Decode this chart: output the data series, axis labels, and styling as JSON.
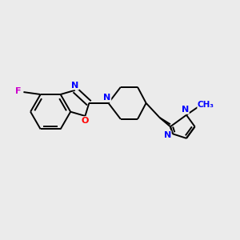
{
  "background_color": "#ebebeb",
  "bond_color": "#000000",
  "atom_colors": {
    "N": "#0000ff",
    "O": "#ff0000",
    "F": "#cc00cc",
    "C": "#000000"
  },
  "figsize": [
    3.0,
    3.0
  ],
  "dpi": 100,
  "lw": 1.4,
  "fontsize": 8.0
}
